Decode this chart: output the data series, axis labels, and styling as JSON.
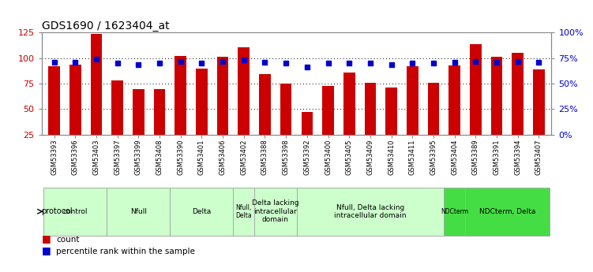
{
  "title": "GDS1690 / 1623404_at",
  "samples": [
    "GSM53393",
    "GSM53396",
    "GSM53403",
    "GSM53397",
    "GSM53399",
    "GSM53408",
    "GSM53390",
    "GSM53401",
    "GSM53406",
    "GSM53402",
    "GSM53388",
    "GSM53398",
    "GSM53392",
    "GSM53400",
    "GSM53405",
    "GSM53409",
    "GSM53410",
    "GSM53411",
    "GSM53395",
    "GSM53404",
    "GSM53389",
    "GSM53391",
    "GSM53394",
    "GSM53407"
  ],
  "counts": [
    92,
    94,
    124,
    78,
    70,
    70,
    102,
    90,
    101,
    111,
    84,
    75,
    47,
    73,
    86,
    76,
    71,
    92,
    76,
    93,
    114,
    101,
    105,
    89
  ],
  "percentiles": [
    71,
    71,
    74,
    70,
    69,
    70,
    72,
    70,
    72,
    73,
    71,
    70,
    66,
    70,
    70,
    70,
    69,
    70,
    70,
    71,
    72,
    71,
    72,
    71
  ],
  "ylim_left": [
    25,
    125
  ],
  "ylim_right": [
    0,
    100
  ],
  "yticks_left": [
    25,
    50,
    75,
    100,
    125
  ],
  "yticks_right": [
    0,
    25,
    50,
    75,
    100
  ],
  "ytick_labels_right": [
    "0%",
    "25%",
    "50%",
    "75%",
    "100%"
  ],
  "bar_color": "#cc0000",
  "dot_color": "#0000cc",
  "grid_color": "#000000",
  "bg_color": "#ffffff",
  "tick_label_color_left": "#cc0000",
  "tick_label_color_right": "#0000cc",
  "protocol_groups": [
    {
      "label": "control",
      "start": 0,
      "end": 2,
      "color": "#ccffcc"
    },
    {
      "label": "Nfull",
      "start": 3,
      "end": 5,
      "color": "#ccffcc"
    },
    {
      "label": "Delta",
      "start": 6,
      "end": 8,
      "color": "#ccffcc"
    },
    {
      "label": "Nfull,\nDelta",
      "start": 9,
      "end": 9,
      "color": "#ccffcc"
    },
    {
      "label": "Delta lacking\nintracellular\ndomain",
      "start": 10,
      "end": 11,
      "color": "#ccffcc"
    },
    {
      "label": "Nfull, Delta lacking\nintracellular domain",
      "start": 12,
      "end": 18,
      "color": "#ccffcc"
    },
    {
      "label": "NDCterm",
      "start": 19,
      "end": 19,
      "color": "#44dd44"
    },
    {
      "label": "NDCterm, Delta",
      "start": 20,
      "end": 23,
      "color": "#44dd44"
    }
  ],
  "legend_count_label": "count",
  "legend_pct_label": "percentile rank within the sample",
  "title_fontsize": 10,
  "bar_width": 0.55
}
